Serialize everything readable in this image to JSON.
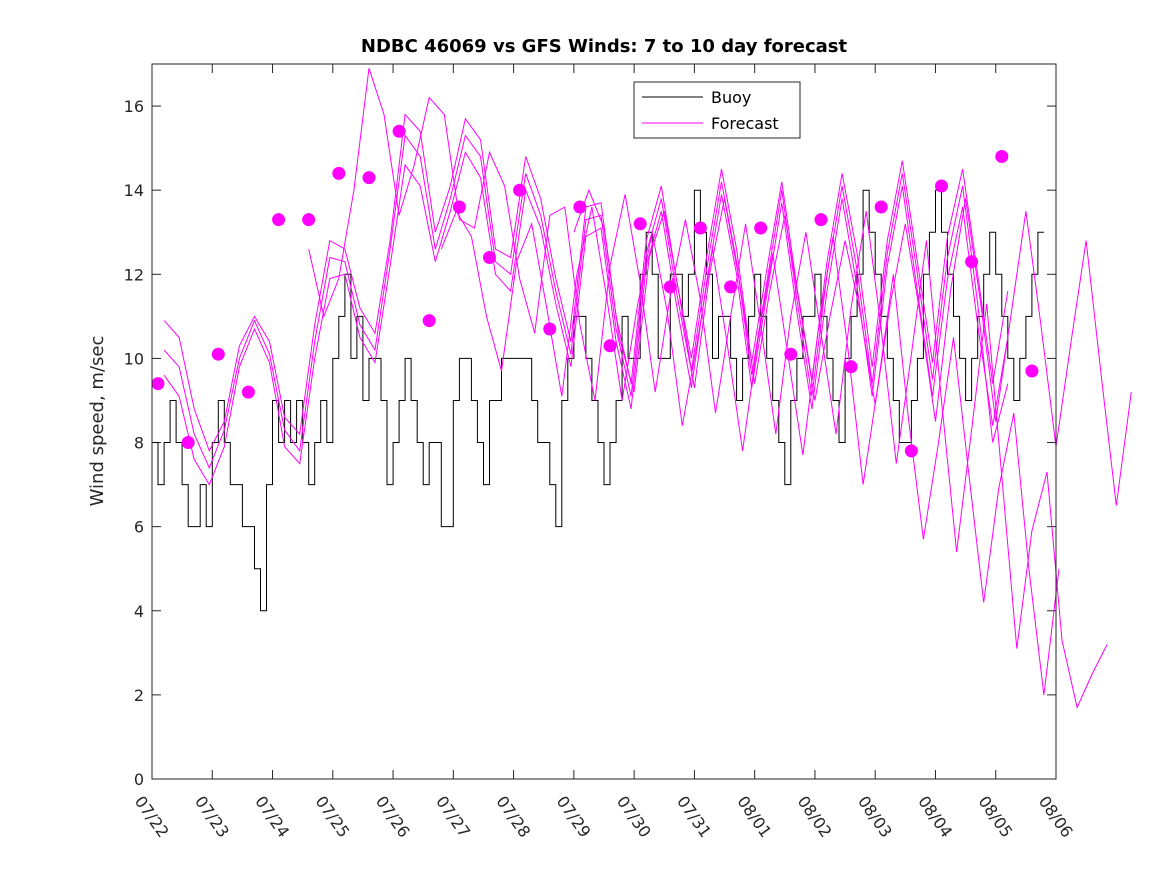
{
  "chart_data": {
    "type": "line",
    "title": "NDBC 46069 vs GFS Winds: 7 to 10 day forecast",
    "xlabel": "",
    "ylabel": "Wind speed, m/sec",
    "xlim": [
      "07/22",
      "08/06"
    ],
    "ylim": [
      0,
      17
    ],
    "yticks": [
      0,
      2,
      4,
      6,
      8,
      10,
      12,
      14,
      16
    ],
    "xtick_labels": [
      "07/22",
      "07/23",
      "07/24",
      "07/25",
      "07/26",
      "07/27",
      "07/28",
      "07/29",
      "07/30",
      "07/31",
      "08/01",
      "08/02",
      "08/03",
      "08/04",
      "08/05",
      "08/06"
    ],
    "grid": false,
    "legend": {
      "position": "top-center",
      "entries": [
        "Buoy",
        "Forecast"
      ]
    },
    "colors": {
      "buoy": "#000000",
      "forecast": "#ff00ff"
    },
    "series": [
      {
        "name": "Buoy",
        "x": [
          0.0,
          0.1,
          0.2,
          0.3,
          0.4,
          0.5,
          0.6,
          0.7,
          0.8,
          0.9,
          1.0,
          1.1,
          1.2,
          1.3,
          1.4,
          1.5,
          1.6,
          1.7,
          1.8,
          1.9,
          2.0,
          2.1,
          2.2,
          2.3,
          2.4,
          2.5,
          2.6,
          2.7,
          2.8,
          2.9,
          3.0,
          3.1,
          3.2,
          3.3,
          3.4,
          3.5,
          3.6,
          3.7,
          3.8,
          3.9,
          4.0,
          4.1,
          4.2,
          4.3,
          4.4,
          4.5,
          4.6,
          4.7,
          4.8,
          4.9,
          5.0,
          5.1,
          5.2,
          5.3,
          5.4,
          5.5,
          5.6,
          5.7,
          5.8,
          5.9,
          6.0,
          6.1,
          6.2,
          6.3,
          6.4,
          6.5,
          6.6,
          6.7,
          6.8,
          6.9,
          7.0,
          7.1,
          7.2,
          7.3,
          7.4,
          7.5,
          7.6,
          7.7,
          7.8,
          7.9,
          8.0,
          8.1,
          8.2,
          8.3,
          8.4,
          8.5,
          8.6,
          8.7,
          8.8,
          8.9,
          9.0,
          9.1,
          9.2,
          9.3,
          9.4,
          9.5,
          9.6,
          9.7,
          9.8,
          9.9,
          10.0,
          10.1,
          10.2,
          10.3,
          10.4,
          10.5,
          10.6,
          10.7,
          10.8,
          10.9,
          11.0,
          11.1,
          11.2,
          11.3,
          11.4,
          11.5,
          11.6,
          11.7,
          11.8,
          11.9,
          12.0,
          12.1,
          12.2,
          12.3,
          12.4,
          12.5,
          12.6,
          12.7,
          12.8,
          12.9,
          13.0,
          13.1,
          13.2,
          13.3,
          13.4,
          13.5,
          13.6,
          13.7,
          13.8,
          13.9,
          14.0,
          14.1,
          14.2,
          14.3,
          14.4,
          14.5,
          14.6,
          14.7,
          14.8
        ],
        "values": [
          8,
          7,
          8,
          9,
          8,
          7,
          6,
          6,
          7,
          6,
          8,
          9,
          8,
          7,
          7,
          6,
          6,
          5,
          4,
          7,
          9,
          8,
          9,
          8,
          9,
          8,
          7,
          8,
          9,
          8,
          10,
          11,
          12,
          10,
          11,
          9,
          10,
          10,
          9,
          7,
          8,
          9,
          10,
          9,
          8,
          7,
          8,
          8,
          6,
          6,
          9,
          10,
          10,
          9,
          8,
          7,
          9,
          9,
          10,
          10,
          10,
          10,
          10,
          9,
          8,
          8,
          7,
          6,
          9,
          10,
          11,
          11,
          10,
          9,
          8,
          7,
          8,
          9,
          11,
          10,
          10,
          12,
          13,
          12,
          10,
          10,
          12,
          12,
          11,
          12,
          14,
          13,
          12,
          10,
          11,
          11,
          10,
          9,
          10,
          11,
          12,
          11,
          10,
          9,
          8,
          7,
          9,
          10,
          11,
          11,
          12,
          11,
          10,
          9,
          8,
          10,
          11,
          12,
          14,
          13,
          12,
          11,
          10,
          9,
          8,
          8,
          9,
          10,
          12,
          13,
          14,
          13,
          12,
          11,
          10,
          9,
          10,
          11,
          12,
          13,
          12,
          11,
          10,
          9,
          10,
          11,
          12,
          13,
          13
        ]
      },
      {
        "name": "Forecast",
        "points": [
          [
            0.1,
            9.4
          ],
          [
            0.6,
            8.0
          ],
          [
            1.1,
            10.1
          ],
          [
            1.6,
            9.2
          ],
          [
            2.1,
            13.3
          ],
          [
            2.6,
            13.3
          ],
          [
            3.1,
            14.4
          ],
          [
            3.6,
            14.3
          ],
          [
            4.1,
            15.4
          ],
          [
            4.6,
            10.9
          ],
          [
            5.1,
            13.6
          ],
          [
            5.6,
            12.4
          ],
          [
            6.1,
            14.0
          ],
          [
            6.6,
            10.7
          ],
          [
            7.1,
            13.6
          ],
          [
            7.6,
            10.3
          ],
          [
            8.1,
            13.2
          ],
          [
            8.6,
            11.7
          ],
          [
            9.1,
            13.1
          ],
          [
            9.6,
            11.7
          ],
          [
            10.1,
            13.1
          ],
          [
            10.6,
            10.1
          ],
          [
            11.1,
            13.3
          ],
          [
            11.6,
            9.8
          ],
          [
            12.1,
            13.6
          ],
          [
            12.6,
            7.8
          ],
          [
            13.1,
            14.1
          ],
          [
            13.6,
            12.3
          ],
          [
            14.1,
            14.8
          ],
          [
            14.6,
            9.7
          ]
        ],
        "runs": [
          {
            "x0": 0.2,
            "values": [
              10.9,
              10.5,
              8.8,
              7.8,
              8.5,
              10.3,
              11.0,
              10.4,
              8.6,
              8.2,
              10.8,
              12.8,
              12.6,
              11.2,
              10.6,
              12.8,
              15.8,
              15.4,
              13.0,
              14.1,
              15.7,
              15.2,
              12.6,
              12.4,
              14.8,
              13.8,
              11.9,
              10.4,
              13.6,
              13.7,
              11.0,
              9.4,
              12.8,
              14.1,
              11.9,
              10.0,
              12.4,
              14.5,
              12.6,
              9.9,
              12.1,
              14.2,
              11.7,
              9.5,
              12.3,
              14.4,
              12.5,
              9.8,
              12.8,
              14.7,
              12.3,
              9.9,
              12.9,
              14.5,
              12.0,
              9.4,
              11.6
            ]
          },
          {
            "x0": 0.2,
            "values": [
              9.6,
              9.1,
              7.6,
              7.0,
              7.9,
              9.8,
              10.7,
              9.9,
              7.9,
              7.5,
              10.0,
              11.9,
              12.0,
              10.5,
              9.9,
              12.2,
              14.6,
              14.1,
              12.3,
              13.5,
              14.9,
              14.3,
              12.0,
              11.6,
              14.0,
              13.1,
              11.3,
              9.8,
              12.9,
              13.1,
              10.4,
              8.8,
              12.2,
              13.5,
              11.3,
              9.3,
              11.8,
              13.9,
              12.0,
              9.3,
              11.5,
              13.7,
              11.1,
              8.8,
              11.6,
              13.8,
              11.7,
              9.1,
              12.2,
              14.1,
              11.6,
              9.1,
              11.9,
              13.6,
              10.8,
              8.4,
              10.5
            ]
          },
          {
            "x0": 0.2,
            "values": [
              10.2,
              9.8,
              8.2,
              7.4,
              8.3,
              10.0,
              10.9,
              10.1,
              8.3,
              7.8,
              10.4,
              12.4,
              12.3,
              10.8,
              10.2,
              12.6,
              15.3,
              14.8,
              12.6,
              13.8,
              15.3,
              14.8,
              12.3,
              12.0,
              14.4,
              13.4,
              11.6,
              10.1,
              13.3,
              13.4,
              10.7,
              9.1,
              12.5,
              13.8,
              11.6,
              9.7,
              12.1,
              14.2,
              12.3,
              9.6,
              11.8,
              14.0,
              11.4,
              9.1,
              12.0,
              14.1,
              12.1,
              9.4,
              12.5,
              14.4,
              12.0,
              9.5,
              12.4,
              14.1,
              11.3,
              8.0,
              9.4
            ]
          },
          {
            "x0": 2.6,
            "values": [
              12.6,
              11.0,
              11.9,
              14.0,
              16.9,
              15.8,
              13.4,
              14.6,
              16.2,
              15.8,
              13.3,
              13.1,
              14.9,
              14.1,
              11.9,
              10.6,
              13.4,
              13.6,
              10.8,
              9.0,
              12.2,
              13.9,
              11.8,
              9.2,
              11.5,
              13.3,
              11.4,
              8.7,
              11.0,
              13.2,
              10.8,
              8.2,
              11.0,
              13.0,
              10.6,
              8.2,
              11.2,
              13.5,
              10.7,
              7.5,
              10.1,
              12.8,
              9.0,
              5.4,
              8.3,
              11.3,
              7.2,
              3.1,
              5.9,
              7.3,
              3.3,
              1.7,
              2.5,
              3.2
            ]
          },
          {
            "x0": 4.8,
            "values": [
              12.6,
              13.5,
              12.9,
              11.0,
              9.7,
              12.3,
              13.2,
              11.2,
              9.1,
              12.0,
              13.6,
              11.4,
              9.0,
              11.2,
              13.0,
              11.1,
              8.4,
              10.4,
              12.6,
              10.3,
              7.8,
              10.4,
              12.5,
              10.1,
              7.7,
              10.6,
              12.9,
              10.2,
              7.0,
              9.4,
              12.0,
              8.6,
              5.7,
              8.0,
              10.5,
              7.3,
              4.2,
              6.9,
              8.7,
              5.0,
              2.0,
              5.0
            ]
          },
          {
            "x0": 7.0,
            "values": [
              13.0,
              14.0,
              13.1,
              10.5,
              9.2,
              12.4,
              13.5,
              11.5,
              9.3,
              12.0,
              13.8,
              11.8,
              9.4,
              11.6,
              13.4,
              11.2,
              9.0,
              11.0,
              12.8,
              11.1,
              8.9,
              11.3,
              13.2,
              11.0,
              8.5,
              11.6,
              13.8,
              11.3,
              8.5,
              11.0,
              13.5,
              10.8,
              7.9,
              10.4,
              12.8,
              9.6,
              6.5,
              9.2
            ]
          }
        ]
      }
    ]
  }
}
